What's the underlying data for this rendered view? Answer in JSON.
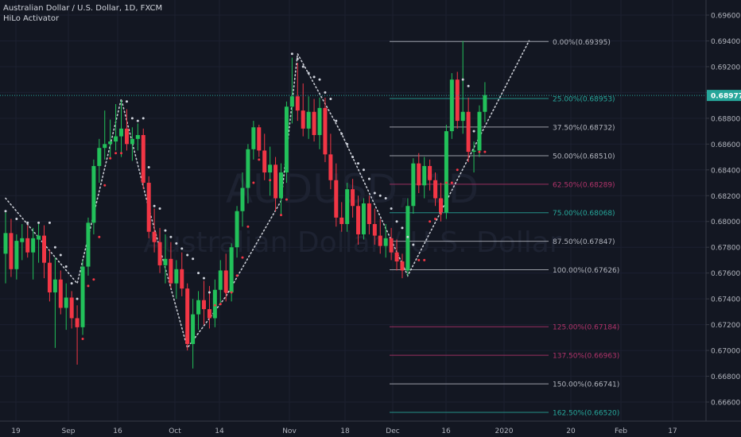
{
  "header": {
    "title": "Australian Dollar / U.S. Dollar, 1D, FXCM",
    "indicator": "HiLo Activator"
  },
  "watermark": {
    "symbol": "AUDUSD, 1D",
    "name": "Australian Dollar / U.S. Dollar"
  },
  "colors": {
    "background": "#131722",
    "up": "#26a69a",
    "up_bright": "#22c15a",
    "down": "#f23645",
    "price_line": "#26a69a",
    "hilo_dot": "#cfd3dc"
  },
  "chart_data": {
    "type": "candlestick",
    "ylim": [
      0.6644,
      0.6972
    ],
    "price_ticks": [
      "0.69600",
      "0.69400",
      "0.69200",
      "0.69000",
      "0.68800",
      "0.68600",
      "0.68400",
      "0.68200",
      "0.68000",
      "0.67800",
      "0.67600",
      "0.67400",
      "0.67200",
      "0.67000",
      "0.66800",
      "0.66600"
    ],
    "x_ticks": [
      "19",
      "Sep",
      "16",
      "Oct",
      "14",
      "Nov",
      "18",
      "Dec",
      "16",
      "2020",
      "20",
      "Feb",
      "17"
    ],
    "last_price": "0.68977",
    "fibonacci": [
      {
        "level": "0.00%",
        "price": 0.69395,
        "label": "0.00%(0.69395)",
        "color": "#b2b5be"
      },
      {
        "level": "25.00%",
        "price": 0.68953,
        "label": "25.00%(0.68953)",
        "color": "#26a69a"
      },
      {
        "level": "37.50%",
        "price": 0.68732,
        "label": "37.50%(0.68732)",
        "color": "#b2b5be"
      },
      {
        "level": "50.00%",
        "price": 0.6851,
        "label": "50.00%(0.68510)",
        "color": "#b2b5be"
      },
      {
        "level": "62.50%",
        "price": 0.68289,
        "label": "62.50%(0.68289)",
        "color": "#b0336a"
      },
      {
        "level": "75.00%",
        "price": 0.68068,
        "label": "75.00%(0.68068)",
        "color": "#26a69a"
      },
      {
        "level": "87.50%",
        "price": 0.67847,
        "label": "87.50%(0.67847)",
        "color": "#b2b5be"
      },
      {
        "level": "100.00%",
        "price": 0.67626,
        "label": "100.00%(0.67626)",
        "color": "#b2b5be"
      },
      {
        "level": "125.00%",
        "price": 0.67184,
        "label": "125.00%(0.67184)",
        "color": "#b0336a"
      },
      {
        "level": "137.50%",
        "price": 0.66963,
        "label": "137.50%(0.66963)",
        "color": "#b0336a"
      },
      {
        "level": "150.00%",
        "price": 0.66741,
        "label": "150.00%(0.66741)",
        "color": "#b2b5be"
      },
      {
        "level": "162.50%",
        "price": 0.6652,
        "label": "162.50%(0.66520)",
        "color": "#26a69a"
      }
    ],
    "candles": [
      {
        "o": 0.6775,
        "h": 0.6807,
        "l": 0.6752,
        "c": 0.6791
      },
      {
        "o": 0.6791,
        "h": 0.6802,
        "l": 0.6757,
        "c": 0.6763
      },
      {
        "o": 0.6763,
        "h": 0.679,
        "l": 0.6755,
        "c": 0.6785
      },
      {
        "o": 0.6784,
        "h": 0.6798,
        "l": 0.677,
        "c": 0.6787
      },
      {
        "o": 0.6787,
        "h": 0.6797,
        "l": 0.6772,
        "c": 0.6776
      },
      {
        "o": 0.6776,
        "h": 0.6795,
        "l": 0.6755,
        "c": 0.6787
      },
      {
        "o": 0.6786,
        "h": 0.6798,
        "l": 0.6768,
        "c": 0.6789
      },
      {
        "o": 0.6789,
        "h": 0.6797,
        "l": 0.6756,
        "c": 0.6768
      },
      {
        "o": 0.6768,
        "h": 0.6778,
        "l": 0.6738,
        "c": 0.6745
      },
      {
        "o": 0.6745,
        "h": 0.6772,
        "l": 0.6702,
        "c": 0.6755
      },
      {
        "o": 0.6755,
        "h": 0.6762,
        "l": 0.6728,
        "c": 0.6733
      },
      {
        "o": 0.6733,
        "h": 0.6752,
        "l": 0.6716,
        "c": 0.6741
      },
      {
        "o": 0.6741,
        "h": 0.6746,
        "l": 0.6717,
        "c": 0.6725
      },
      {
        "o": 0.6725,
        "h": 0.6735,
        "l": 0.6689,
        "c": 0.6718
      },
      {
        "o": 0.6718,
        "h": 0.677,
        "l": 0.6712,
        "c": 0.6765
      },
      {
        "o": 0.6765,
        "h": 0.6803,
        "l": 0.6758,
        "c": 0.6799
      },
      {
        "o": 0.6799,
        "h": 0.6848,
        "l": 0.679,
        "c": 0.6843
      },
      {
        "o": 0.6843,
        "h": 0.6864,
        "l": 0.683,
        "c": 0.6857
      },
      {
        "o": 0.6857,
        "h": 0.6886,
        "l": 0.6848,
        "c": 0.686
      },
      {
        "o": 0.686,
        "h": 0.6879,
        "l": 0.6849,
        "c": 0.6862
      },
      {
        "o": 0.6862,
        "h": 0.6891,
        "l": 0.6855,
        "c": 0.6866
      },
      {
        "o": 0.6866,
        "h": 0.6894,
        "l": 0.685,
        "c": 0.6872
      },
      {
        "o": 0.6872,
        "h": 0.6887,
        "l": 0.6855,
        "c": 0.686
      },
      {
        "o": 0.686,
        "h": 0.6873,
        "l": 0.6847,
        "c": 0.6864
      },
      {
        "o": 0.6864,
        "h": 0.6876,
        "l": 0.6855,
        "c": 0.6867
      },
      {
        "o": 0.6867,
        "h": 0.6872,
        "l": 0.6825,
        "c": 0.683
      },
      {
        "o": 0.683,
        "h": 0.6835,
        "l": 0.6787,
        "c": 0.6792
      },
      {
        "o": 0.6792,
        "h": 0.681,
        "l": 0.6776,
        "c": 0.6784
      },
      {
        "o": 0.6784,
        "h": 0.6795,
        "l": 0.676,
        "c": 0.6766
      },
      {
        "o": 0.6766,
        "h": 0.679,
        "l": 0.6752,
        "c": 0.6771
      },
      {
        "o": 0.6771,
        "h": 0.6784,
        "l": 0.6748,
        "c": 0.6752
      },
      {
        "o": 0.6752,
        "h": 0.677,
        "l": 0.674,
        "c": 0.6763
      },
      {
        "o": 0.6763,
        "h": 0.6776,
        "l": 0.6742,
        "c": 0.6748
      },
      {
        "o": 0.6748,
        "h": 0.6752,
        "l": 0.67,
        "c": 0.6705
      },
      {
        "o": 0.6705,
        "h": 0.674,
        "l": 0.6686,
        "c": 0.6728
      },
      {
        "o": 0.6728,
        "h": 0.6746,
        "l": 0.6716,
        "c": 0.6739
      },
      {
        "o": 0.6739,
        "h": 0.6754,
        "l": 0.672,
        "c": 0.6732
      },
      {
        "o": 0.6732,
        "h": 0.675,
        "l": 0.6717,
        "c": 0.6725
      },
      {
        "o": 0.6725,
        "h": 0.6755,
        "l": 0.6718,
        "c": 0.6747
      },
      {
        "o": 0.6747,
        "h": 0.677,
        "l": 0.6735,
        "c": 0.6762
      },
      {
        "o": 0.6762,
        "h": 0.6775,
        "l": 0.6738,
        "c": 0.6745
      },
      {
        "o": 0.6745,
        "h": 0.6783,
        "l": 0.6738,
        "c": 0.678
      },
      {
        "o": 0.678,
        "h": 0.6812,
        "l": 0.6772,
        "c": 0.6808
      },
      {
        "o": 0.6808,
        "h": 0.6838,
        "l": 0.6796,
        "c": 0.6826
      },
      {
        "o": 0.6826,
        "h": 0.686,
        "l": 0.6814,
        "c": 0.6856
      },
      {
        "o": 0.6856,
        "h": 0.6878,
        "l": 0.6848,
        "c": 0.6873
      },
      {
        "o": 0.6873,
        "h": 0.6875,
        "l": 0.685,
        "c": 0.6855
      },
      {
        "o": 0.6855,
        "h": 0.6868,
        "l": 0.6832,
        "c": 0.6838
      },
      {
        "o": 0.6838,
        "h": 0.6858,
        "l": 0.682,
        "c": 0.6844
      },
      {
        "o": 0.6844,
        "h": 0.685,
        "l": 0.6808,
        "c": 0.6818
      },
      {
        "o": 0.6818,
        "h": 0.6845,
        "l": 0.6805,
        "c": 0.6838
      },
      {
        "o": 0.6838,
        "h": 0.6893,
        "l": 0.683,
        "c": 0.6889
      },
      {
        "o": 0.6889,
        "h": 0.6927,
        "l": 0.6876,
        "c": 0.6897
      },
      {
        "o": 0.6897,
        "h": 0.6923,
        "l": 0.6878,
        "c": 0.6886
      },
      {
        "o": 0.6886,
        "h": 0.6907,
        "l": 0.6866,
        "c": 0.6872
      },
      {
        "o": 0.6872,
        "h": 0.6897,
        "l": 0.6864,
        "c": 0.6885
      },
      {
        "o": 0.6885,
        "h": 0.6895,
        "l": 0.6862,
        "c": 0.6867
      },
      {
        "o": 0.6867,
        "h": 0.6896,
        "l": 0.6856,
        "c": 0.6888
      },
      {
        "o": 0.6888,
        "h": 0.6896,
        "l": 0.6846,
        "c": 0.6852
      },
      {
        "o": 0.6852,
        "h": 0.6868,
        "l": 0.6825,
        "c": 0.6832
      },
      {
        "o": 0.6832,
        "h": 0.6845,
        "l": 0.6796,
        "c": 0.6803
      },
      {
        "o": 0.6803,
        "h": 0.6815,
        "l": 0.6792,
        "c": 0.6798
      },
      {
        "o": 0.6798,
        "h": 0.683,
        "l": 0.6792,
        "c": 0.6825
      },
      {
        "o": 0.6825,
        "h": 0.6833,
        "l": 0.6803,
        "c": 0.6812
      },
      {
        "o": 0.6812,
        "h": 0.682,
        "l": 0.6782,
        "c": 0.679
      },
      {
        "o": 0.679,
        "h": 0.6818,
        "l": 0.6786,
        "c": 0.6814
      },
      {
        "o": 0.6814,
        "h": 0.682,
        "l": 0.679,
        "c": 0.6798
      },
      {
        "o": 0.6798,
        "h": 0.681,
        "l": 0.6782,
        "c": 0.6789
      },
      {
        "o": 0.6789,
        "h": 0.6802,
        "l": 0.6775,
        "c": 0.6781
      },
      {
        "o": 0.6781,
        "h": 0.6798,
        "l": 0.6772,
        "c": 0.6787
      },
      {
        "o": 0.6787,
        "h": 0.6795,
        "l": 0.677,
        "c": 0.6776
      },
      {
        "o": 0.6776,
        "h": 0.6786,
        "l": 0.6762,
        "c": 0.6769
      },
      {
        "o": 0.6769,
        "h": 0.6775,
        "l": 0.6756,
        "c": 0.6762
      },
      {
        "o": 0.6762,
        "h": 0.6818,
        "l": 0.6758,
        "c": 0.6812
      },
      {
        "o": 0.6812,
        "h": 0.6849,
        "l": 0.6806,
        "c": 0.6845
      },
      {
        "o": 0.6845,
        "h": 0.6853,
        "l": 0.6822,
        "c": 0.6828
      },
      {
        "o": 0.6828,
        "h": 0.685,
        "l": 0.6818,
        "c": 0.6843
      },
      {
        "o": 0.6843,
        "h": 0.6848,
        "l": 0.6824,
        "c": 0.6832
      },
      {
        "o": 0.6832,
        "h": 0.6838,
        "l": 0.6812,
        "c": 0.6818
      },
      {
        "o": 0.6818,
        "h": 0.683,
        "l": 0.68,
        "c": 0.6807
      },
      {
        "o": 0.6807,
        "h": 0.6875,
        "l": 0.6802,
        "c": 0.687
      },
      {
        "o": 0.687,
        "h": 0.6915,
        "l": 0.6864,
        "c": 0.691
      },
      {
        "o": 0.691,
        "h": 0.6916,
        "l": 0.6872,
        "c": 0.6878
      },
      {
        "o": 0.6878,
        "h": 0.694,
        "l": 0.6868,
        "c": 0.6885
      },
      {
        "o": 0.6885,
        "h": 0.6896,
        "l": 0.6846,
        "c": 0.6854
      },
      {
        "o": 0.6854,
        "h": 0.6862,
        "l": 0.6838,
        "c": 0.6855
      },
      {
        "o": 0.6855,
        "h": 0.689,
        "l": 0.685,
        "c": 0.6885
      },
      {
        "o": 0.6885,
        "h": 0.6908,
        "l": 0.6877,
        "c": 0.6898
      }
    ],
    "hilo_markers": [
      {
        "i": 0,
        "p": 0.6808,
        "s": "up"
      },
      {
        "i": 2,
        "p": 0.6802,
        "s": "up"
      },
      {
        "i": 4,
        "p": 0.6799,
        "s": "up"
      },
      {
        "i": 6,
        "p": 0.6799,
        "s": "up"
      },
      {
        "i": 8,
        "p": 0.6799,
        "s": "up"
      },
      {
        "i": 9,
        "p": 0.678,
        "s": "up"
      },
      {
        "i": 10,
        "p": 0.6774,
        "s": "up"
      },
      {
        "i": 11,
        "p": 0.6765,
        "s": "up"
      },
      {
        "i": 12,
        "p": 0.6752,
        "s": "up"
      },
      {
        "i": 13,
        "p": 0.674,
        "s": "up"
      },
      {
        "i": 14,
        "p": 0.6709,
        "s": "dn"
      },
      {
        "i": 15,
        "p": 0.675,
        "s": "dn"
      },
      {
        "i": 16,
        "p": 0.6755,
        "s": "dn"
      },
      {
        "i": 17,
        "p": 0.6788,
        "s": "dn"
      },
      {
        "i": 18,
        "p": 0.6828,
        "s": "dn"
      },
      {
        "i": 19,
        "p": 0.6849,
        "s": "dn"
      },
      {
        "i": 20,
        "p": 0.6853,
        "s": "dn"
      },
      {
        "i": 21,
        "p": 0.6853,
        "s": "dn"
      },
      {
        "i": 22,
        "p": 0.6893,
        "s": "up"
      },
      {
        "i": 23,
        "p": 0.688,
        "s": "up"
      },
      {
        "i": 24,
        "p": 0.6878,
        "s": "up"
      },
      {
        "i": 25,
        "p": 0.688,
        "s": "up"
      },
      {
        "i": 26,
        "p": 0.6842,
        "s": "up"
      },
      {
        "i": 27,
        "p": 0.6812,
        "s": "up"
      },
      {
        "i": 28,
        "p": 0.681,
        "s": "up"
      },
      {
        "i": 29,
        "p": 0.6793,
        "s": "up"
      },
      {
        "i": 30,
        "p": 0.6788,
        "s": "up"
      },
      {
        "i": 31,
        "p": 0.6783,
        "s": "up"
      },
      {
        "i": 32,
        "p": 0.6779,
        "s": "up"
      },
      {
        "i": 33,
        "p": 0.6774,
        "s": "up"
      },
      {
        "i": 34,
        "p": 0.6771,
        "s": "up"
      },
      {
        "i": 35,
        "p": 0.676,
        "s": "up"
      },
      {
        "i": 36,
        "p": 0.6756,
        "s": "up"
      },
      {
        "i": 37,
        "p": 0.6745,
        "s": "up"
      },
      {
        "i": 38,
        "p": 0.6735,
        "s": "dn"
      },
      {
        "i": 39,
        "p": 0.6736,
        "s": "dn"
      },
      {
        "i": 40,
        "p": 0.6745,
        "s": "dn"
      },
      {
        "i": 41,
        "p": 0.6745,
        "s": "dn"
      },
      {
        "i": 42,
        "p": 0.6758,
        "s": "dn"
      },
      {
        "i": 43,
        "p": 0.6772,
        "s": "dn"
      },
      {
        "i": 44,
        "p": 0.6796,
        "s": "dn"
      },
      {
        "i": 45,
        "p": 0.683,
        "s": "dn"
      },
      {
        "i": 46,
        "p": 0.6848,
        "s": "dn"
      },
      {
        "i": 47,
        "p": 0.685,
        "s": "dn"
      },
      {
        "i": 48,
        "p": 0.6832,
        "s": "dn"
      },
      {
        "i": 49,
        "p": 0.682,
        "s": "dn"
      },
      {
        "i": 50,
        "p": 0.6805,
        "s": "dn"
      },
      {
        "i": 51,
        "p": 0.6817,
        "s": "dn"
      },
      {
        "i": 52,
        "p": 0.693,
        "s": "up"
      },
      {
        "i": 53,
        "p": 0.6926,
        "s": "up"
      },
      {
        "i": 54,
        "p": 0.692,
        "s": "up"
      },
      {
        "i": 55,
        "p": 0.6915,
        "s": "up"
      },
      {
        "i": 56,
        "p": 0.6912,
        "s": "up"
      },
      {
        "i": 57,
        "p": 0.691,
        "s": "up"
      },
      {
        "i": 58,
        "p": 0.69,
        "s": "up"
      },
      {
        "i": 59,
        "p": 0.6895,
        "s": "up"
      },
      {
        "i": 60,
        "p": 0.6878,
        "s": "up"
      },
      {
        "i": 61,
        "p": 0.6868,
        "s": "up"
      },
      {
        "i": 62,
        "p": 0.686,
        "s": "up"
      },
      {
        "i": 63,
        "p": 0.685,
        "s": "up"
      },
      {
        "i": 64,
        "p": 0.6845,
        "s": "up"
      },
      {
        "i": 65,
        "p": 0.684,
        "s": "up"
      },
      {
        "i": 66,
        "p": 0.6833,
        "s": "up"
      },
      {
        "i": 67,
        "p": 0.6822,
        "s": "up"
      },
      {
        "i": 68,
        "p": 0.682,
        "s": "up"
      },
      {
        "i": 69,
        "p": 0.6818,
        "s": "up"
      },
      {
        "i": 70,
        "p": 0.681,
        "s": "up"
      },
      {
        "i": 71,
        "p": 0.68,
        "s": "up"
      },
      {
        "i": 72,
        "p": 0.6795,
        "s": "up"
      },
      {
        "i": 73,
        "p": 0.6788,
        "s": "up"
      },
      {
        "i": 74,
        "p": 0.6782,
        "s": "up"
      },
      {
        "i": 75,
        "p": 0.677,
        "s": "dn"
      },
      {
        "i": 76,
        "p": 0.677,
        "s": "dn"
      },
      {
        "i": 77,
        "p": 0.68,
        "s": "dn"
      },
      {
        "i": 78,
        "p": 0.6802,
        "s": "dn"
      },
      {
        "i": 79,
        "p": 0.6806,
        "s": "dn"
      },
      {
        "i": 80,
        "p": 0.683,
        "s": "dn"
      },
      {
        "i": 81,
        "p": 0.683,
        "s": "dn"
      },
      {
        "i": 82,
        "p": 0.684,
        "s": "dn"
      },
      {
        "i": 83,
        "p": 0.691,
        "s": "up"
      },
      {
        "i": 84,
        "p": 0.6905,
        "s": "up"
      },
      {
        "i": 85,
        "p": 0.687,
        "s": "up"
      },
      {
        "i": 86,
        "p": 0.6854,
        "s": "dn"
      },
      {
        "i": 87,
        "p": 0.6854,
        "s": "dn"
      }
    ],
    "trend_line": [
      {
        "i": 0,
        "p": 0.6818
      },
      {
        "i": 13,
        "p": 0.6752
      },
      {
        "i": 21,
        "p": 0.6895
      },
      {
        "i": 26,
        "p": 0.681
      },
      {
        "i": 33,
        "p": 0.6702
      },
      {
        "i": 40,
        "p": 0.6742
      },
      {
        "i": 50,
        "p": 0.6816
      },
      {
        "i": 53,
        "p": 0.693
      },
      {
        "i": 61,
        "p": 0.6868
      },
      {
        "i": 73,
        "p": 0.6758
      },
      {
        "i": 95,
        "p": 0.694
      }
    ]
  }
}
